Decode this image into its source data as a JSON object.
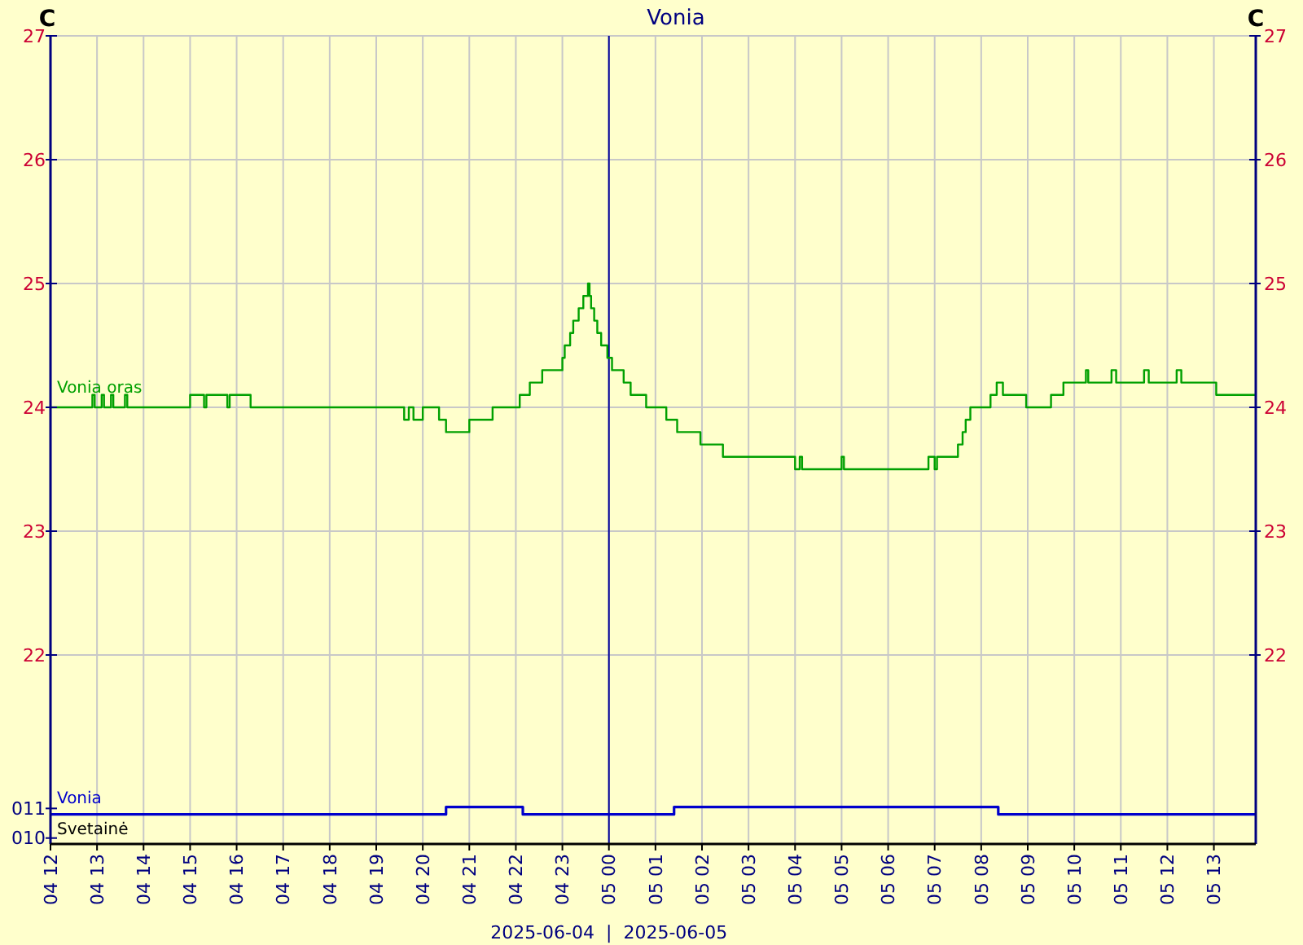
{
  "chart_data": [
    {
      "type": "step",
      "title": "Vonia",
      "ylabel": "C",
      "y2label": "C",
      "xlim": [
        "2025-06-04T12:00",
        "2025-06-05T13:54"
      ],
      "xticks": [
        "2025-06-04T12:00",
        "2025-06-04T13:00",
        "2025-06-04T14:00",
        "2025-06-04T15:00",
        "2025-06-04T16:00",
        "2025-06-04T17:00",
        "2025-06-04T18:00",
        "2025-06-04T19:00",
        "2025-06-04T20:00",
        "2025-06-04T21:00",
        "2025-06-04T22:00",
        "2025-06-04T23:00",
        "2025-06-05T00:00",
        "2025-06-05T01:00",
        "2025-06-05T02:00",
        "2025-06-05T03:00",
        "2025-06-05T04:00",
        "2025-06-05T05:00",
        "2025-06-05T06:00",
        "2025-06-05T07:00",
        "2025-06-05T08:00",
        "2025-06-05T09:00",
        "2025-06-05T10:00",
        "2025-06-05T11:00",
        "2025-06-05T12:00",
        "2025-06-05T13:00"
      ],
      "ylim": [
        21,
        27
      ],
      "yticks": [
        22,
        23,
        24,
        25,
        26,
        27
      ],
      "y2lim": [
        21,
        27
      ],
      "y2ticks": [
        22,
        23,
        24,
        25,
        26,
        27
      ],
      "grid": true,
      "tick_labels": "y",
      "legend": false,
      "ref_lines": [
        {
          "axis": "x",
          "value": "2025-06-05T00:00",
          "color": "#000099"
        }
      ],
      "series": [
        {
          "name": "Vonia oras",
          "color": "#00a000",
          "x": [
            "2025-06-04T12:00",
            "2025-06-04T12:54",
            "2025-06-04T12:57",
            "2025-06-04T13:06",
            "2025-06-04T13:09",
            "2025-06-04T13:18",
            "2025-06-04T13:21",
            "2025-06-04T13:36",
            "2025-06-04T13:39",
            "2025-06-04T15:00",
            "2025-06-04T15:18",
            "2025-06-04T15:21",
            "2025-06-04T15:48",
            "2025-06-04T15:51",
            "2025-06-04T16:18",
            "2025-06-04T19:36",
            "2025-06-04T19:42",
            "2025-06-04T19:48",
            "2025-06-04T20:00",
            "2025-06-04T20:21",
            "2025-06-04T20:30",
            "2025-06-04T21:00",
            "2025-06-04T21:30",
            "2025-06-04T22:05",
            "2025-06-04T22:18",
            "2025-06-04T22:34",
            "2025-06-04T23:00",
            "2025-06-04T23:03",
            "2025-06-04T23:10",
            "2025-06-04T23:14",
            "2025-06-04T23:21",
            "2025-06-04T23:27",
            "2025-06-04T23:33",
            "2025-06-04T23:35",
            "2025-06-04T23:37",
            "2025-06-04T23:41",
            "2025-06-04T23:45",
            "2025-06-04T23:50",
            "2025-06-04T23:58",
            "2025-06-05T00:04",
            "2025-06-05T00:19",
            "2025-06-05T00:28",
            "2025-06-05T00:48",
            "2025-06-05T01:14",
            "2025-06-05T01:28",
            "2025-06-05T01:58",
            "2025-06-05T02:27",
            "2025-06-05T04:00",
            "2025-06-05T04:06",
            "2025-06-05T04:09",
            "2025-06-05T05:00",
            "2025-06-05T05:03",
            "2025-06-05T06:52",
            "2025-06-05T07:00",
            "2025-06-05T07:03",
            "2025-06-05T07:30",
            "2025-06-05T07:36",
            "2025-06-05T07:40",
            "2025-06-05T07:46",
            "2025-06-05T08:12",
            "2025-06-05T08:20",
            "2025-06-05T08:28",
            "2025-06-05T08:58",
            "2025-06-05T09:30",
            "2025-06-05T09:46",
            "2025-06-05T10:15",
            "2025-06-05T10:18",
            "2025-06-05T10:48",
            "2025-06-05T10:54",
            "2025-06-05T11:30",
            "2025-06-05T11:36",
            "2025-06-05T12:12",
            "2025-06-05T12:18",
            "2025-06-05T13:03",
            "2025-06-05T13:54"
          ],
          "values": [
            24.0,
            24.1,
            24.0,
            24.1,
            24.0,
            24.1,
            24.0,
            24.1,
            24.0,
            24.1,
            24.0,
            24.1,
            24.0,
            24.1,
            24.0,
            23.9,
            24.0,
            23.9,
            24.0,
            23.9,
            23.8,
            23.9,
            24.0,
            24.1,
            24.2,
            24.3,
            24.4,
            24.5,
            24.6,
            24.7,
            24.8,
            24.9,
            25.0,
            24.9,
            24.8,
            24.7,
            24.6,
            24.5,
            24.4,
            24.3,
            24.2,
            24.1,
            24.0,
            23.9,
            23.8,
            23.7,
            23.6,
            23.5,
            23.6,
            23.5,
            23.6,
            23.5,
            23.6,
            23.5,
            23.6,
            23.7,
            23.8,
            23.9,
            24.0,
            24.1,
            24.2,
            24.1,
            24.0,
            24.1,
            24.2,
            24.3,
            24.2,
            24.3,
            24.2,
            24.3,
            24.2,
            24.3,
            24.2,
            24.1,
            24.1
          ]
        }
      ]
    },
    {
      "type": "step",
      "xlim": [
        "2025-06-04T12:00",
        "2025-06-05T13:54"
      ],
      "xticks": [
        {
          "value": "2025-06-04T12:00",
          "label": "04 12"
        },
        {
          "value": "2025-06-04T13:00",
          "label": "04 13"
        },
        {
          "value": "2025-06-04T14:00",
          "label": "04 14"
        },
        {
          "value": "2025-06-04T15:00",
          "label": "04 15"
        },
        {
          "value": "2025-06-04T16:00",
          "label": "04 16"
        },
        {
          "value": "2025-06-04T17:00",
          "label": "04 17"
        },
        {
          "value": "2025-06-04T18:00",
          "label": "04 18"
        },
        {
          "value": "2025-06-04T19:00",
          "label": "04 19"
        },
        {
          "value": "2025-06-04T20:00",
          "label": "04 20"
        },
        {
          "value": "2025-06-04T21:00",
          "label": "04 21"
        },
        {
          "value": "2025-06-04T22:00",
          "label": "04 22"
        },
        {
          "value": "2025-06-04T23:00",
          "label": "04 23"
        },
        {
          "value": "2025-06-05T00:00",
          "label": "05 00"
        },
        {
          "value": "2025-06-05T01:00",
          "label": "05 01"
        },
        {
          "value": "2025-06-05T02:00",
          "label": "05 02"
        },
        {
          "value": "2025-06-05T03:00",
          "label": "05 03"
        },
        {
          "value": "2025-06-05T04:00",
          "label": "05 04"
        },
        {
          "value": "2025-06-05T05:00",
          "label": "05 05"
        },
        {
          "value": "2025-06-05T06:00",
          "label": "05 06"
        },
        {
          "value": "2025-06-05T07:00",
          "label": "05 07"
        },
        {
          "value": "2025-06-05T08:00",
          "label": "05 08"
        },
        {
          "value": "2025-06-05T09:00",
          "label": "05 09"
        },
        {
          "value": "2025-06-05T10:00",
          "label": "05 10"
        },
        {
          "value": "2025-06-05T11:00",
          "label": "05 11"
        },
        {
          "value": "2025-06-05T12:00",
          "label": "05 12"
        },
        {
          "value": "2025-06-05T13:00",
          "label": "05 13"
        }
      ],
      "ylim": [
        9.8,
        12
      ],
      "yticks": [
        {
          "value": 11,
          "label": "011"
        },
        {
          "value": 10,
          "label": "010"
        }
      ],
      "grid": "x",
      "legend": false,
      "ref_lines": [
        {
          "axis": "x",
          "value": "2025-06-05T00:00",
          "color": "#000099"
        }
      ],
      "annotations": [
        "Svetainė",
        "2025-06-04  |  2025-06-05"
      ],
      "series": [
        {
          "name": "Vonia",
          "color": "#0000cc",
          "x": [
            "2025-06-04T12:00",
            "2025-06-04T20:30",
            "2025-06-04T22:09",
            "2025-06-05T01:24",
            "2025-06-05T08:22",
            "2025-06-05T13:54"
          ],
          "values": [
            10.8,
            11.05,
            10.8,
            11.05,
            10.8,
            10.8
          ]
        }
      ]
    }
  ]
}
